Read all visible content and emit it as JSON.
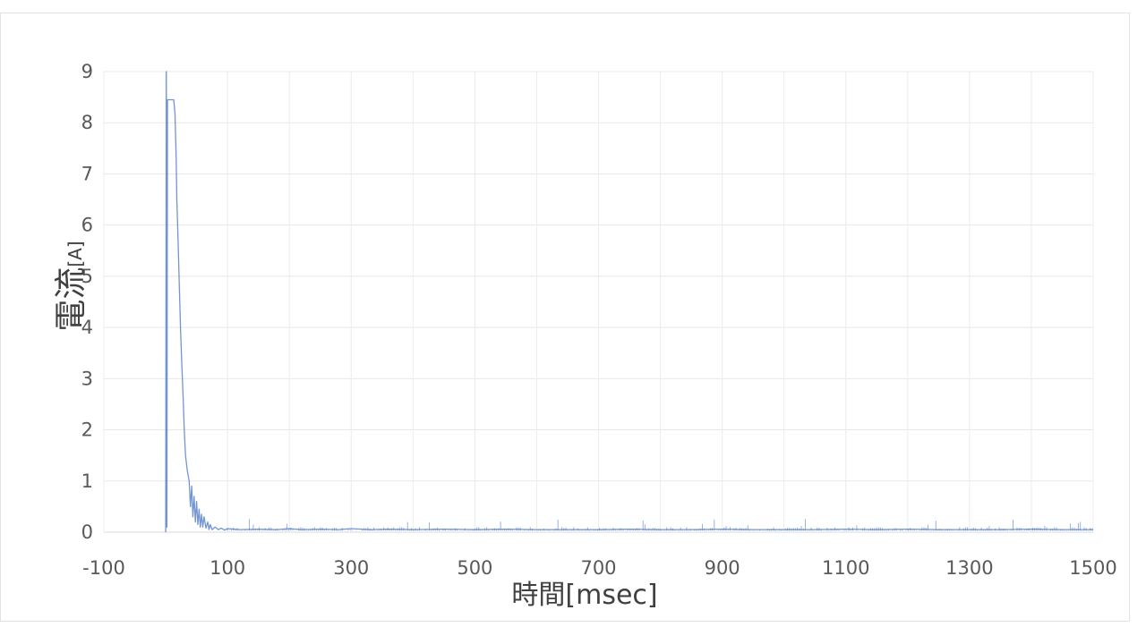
{
  "chart_data": {
    "type": "line",
    "title": "",
    "xlabel": "時間[msec]",
    "ylabel_main": "電流",
    "ylabel_unit": "[A]",
    "xlim": [
      -100,
      1500
    ],
    "ylim": [
      0,
      9
    ],
    "x_ticks": [
      -100,
      100,
      300,
      500,
      700,
      900,
      1100,
      1300,
      1500
    ],
    "y_ticks": [
      0,
      1,
      2,
      3,
      4,
      5,
      6,
      7,
      8,
      9
    ],
    "grid": true,
    "legend": "none",
    "series": [
      {
        "color": "#4472c4",
        "x": [
          0,
          1,
          2,
          3,
          4,
          5,
          8,
          11,
          13,
          15,
          17,
          18,
          20,
          22,
          24,
          26,
          28,
          30,
          32,
          35,
          38,
          40,
          42,
          44,
          46,
          48,
          50,
          52,
          54,
          56,
          58,
          60,
          62,
          65,
          68,
          70,
          72,
          75,
          80,
          85,
          90,
          95,
          100,
          120,
          150,
          180,
          200,
          220,
          250,
          280,
          300,
          330,
          360,
          400,
          450,
          500,
          550,
          600,
          650,
          700,
          750,
          800,
          850,
          900,
          950,
          1000,
          1050,
          1100,
          1150,
          1200,
          1250,
          1300,
          1350,
          1400,
          1450,
          1500
        ],
        "y": [
          0,
          9.0,
          0.1,
          8.45,
          8.45,
          8.45,
          8.45,
          8.45,
          8.45,
          8.2,
          7.3,
          6.5,
          5.7,
          4.8,
          4.0,
          3.3,
          2.7,
          2.0,
          1.5,
          1.2,
          1.0,
          0.5,
          0.9,
          0.3,
          0.7,
          0.2,
          0.6,
          0.15,
          0.45,
          0.1,
          0.35,
          0.1,
          0.3,
          0.08,
          0.2,
          0.05,
          0.15,
          0.05,
          0.1,
          0.05,
          0.08,
          0.04,
          0.07,
          0.05,
          0.06,
          0.05,
          0.07,
          0.05,
          0.06,
          0.05,
          0.07,
          0.05,
          0.06,
          0.05,
          0.06,
          0.05,
          0.06,
          0.05,
          0.05,
          0.05,
          0.06,
          0.05,
          0.05,
          0.06,
          0.05,
          0.05,
          0.05,
          0.06,
          0.05,
          0.06,
          0.05,
          0.05,
          0.05,
          0.06,
          0.05,
          0.05
        ]
      }
    ]
  }
}
